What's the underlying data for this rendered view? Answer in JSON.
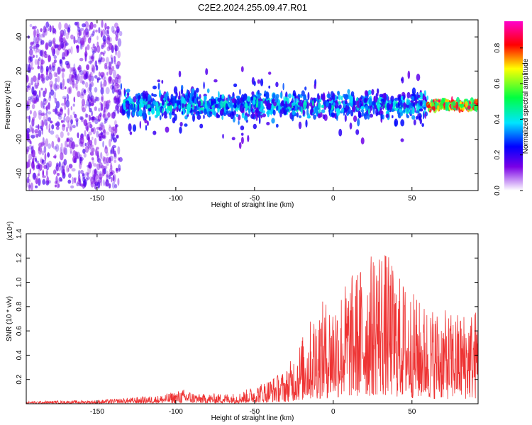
{
  "chart_data": [
    {
      "type": "heatmap",
      "title": "C2E2.2024.255.09.47.R01",
      "xlabel": "Height of straight line (km)",
      "ylabel": "Frequency (Hz)",
      "xlim": [
        -195,
        92
      ],
      "ylim": [
        -50,
        50
      ],
      "xticks": [
        -150,
        -100,
        -50,
        0,
        50
      ],
      "yticks": [
        -40,
        -20,
        0,
        20,
        40
      ],
      "colorbar": {
        "label": "Normalized spectral amplitude",
        "range": [
          0,
          0.95
        ],
        "ticks": [
          "0.0",
          "0.2",
          "0.4",
          "0.6",
          "0.8"
        ],
        "colors": [
          "#ffffff",
          "#7a00e6",
          "#0000ff",
          "#00e5ff",
          "#00ff40",
          "#ffff00",
          "#ff0000",
          "#ff00cc"
        ]
      },
      "bands": [
        {
          "x": [
            -195,
            -135
          ],
          "description": "noise",
          "freq_spread": 48,
          "level": 0.12
        },
        {
          "x": [
            -135,
            60
          ],
          "description": "signal",
          "freq_spread": 10,
          "level": 0.3
        },
        {
          "x": [
            60,
            92
          ],
          "description": "strong",
          "freq_spread": 3,
          "level": 0.9
        }
      ]
    },
    {
      "type": "line",
      "title": "",
      "xlabel": "Height of straight line (km)",
      "ylabel": "SNR (10 * v/v)",
      "multiplier": "(x10⁴)",
      "xlim": [
        -195,
        92
      ],
      "ylim": [
        0,
        1.4
      ],
      "xticks": [
        -150,
        -100,
        -50,
        0,
        50
      ],
      "yticks": [
        "0.2",
        "0.4",
        "0.6",
        "0.8",
        "1.0",
        "1.2",
        "1.4"
      ],
      "color": "#ee3333",
      "envelope": [
        {
          "x": -195,
          "y": 0.02
        },
        {
          "x": -150,
          "y": 0.03
        },
        {
          "x": -130,
          "y": 0.05
        },
        {
          "x": -110,
          "y": 0.07
        },
        {
          "x": -95,
          "y": 0.12
        },
        {
          "x": -85,
          "y": 0.08
        },
        {
          "x": -60,
          "y": 0.09
        },
        {
          "x": -45,
          "y": 0.18
        },
        {
          "x": -30,
          "y": 0.28
        },
        {
          "x": -20,
          "y": 0.55
        },
        {
          "x": -10,
          "y": 0.82
        },
        {
          "x": 0,
          "y": 0.9
        },
        {
          "x": 10,
          "y": 1.05
        },
        {
          "x": 25,
          "y": 1.25
        },
        {
          "x": 28,
          "y": 1.4
        },
        {
          "x": 40,
          "y": 1.1
        },
        {
          "x": 55,
          "y": 0.85
        },
        {
          "x": 75,
          "y": 0.75
        },
        {
          "x": 92,
          "y": 0.8
        }
      ]
    }
  ]
}
